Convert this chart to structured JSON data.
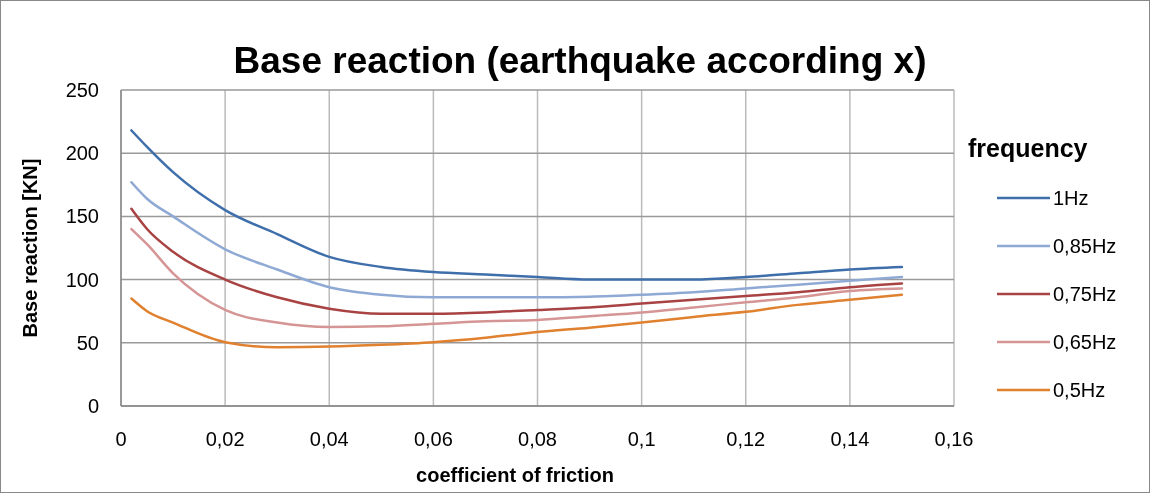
{
  "chart_data": {
    "type": "line",
    "title": "Base reaction (earthquake according x)",
    "xlabel": "coefficient of friction",
    "ylabel": "Base reaction [KN]",
    "legend_title": "frequency",
    "legend": "right",
    "grid": true,
    "line_style": "solid",
    "marker": "none",
    "x": [
      0.002,
      0.005,
      0.01,
      0.02,
      0.03,
      0.04,
      0.05,
      0.06,
      0.07,
      0.08,
      0.09,
      0.1,
      0.11,
      0.12,
      0.13,
      0.14,
      0.15
    ],
    "xlim": [
      0,
      0.16
    ],
    "xticks": [
      {
        "value": 0,
        "label": "0"
      },
      {
        "value": 0.02,
        "label": "0,02"
      },
      {
        "value": 0.04,
        "label": "0,04"
      },
      {
        "value": 0.06,
        "label": "0,06"
      },
      {
        "value": 0.08,
        "label": "0,08"
      },
      {
        "value": 0.1,
        "label": "0,1"
      },
      {
        "value": 0.12,
        "label": "0,12"
      },
      {
        "value": 0.14,
        "label": "0,14"
      },
      {
        "value": 0.16,
        "label": "0,16"
      }
    ],
    "ylim": [
      0,
      250
    ],
    "yticks": [
      0,
      50,
      100,
      150,
      200,
      250
    ],
    "series": [
      {
        "name": "1Hz",
        "color": "#3f6fab",
        "values": [
          218,
          205,
          185,
          155,
          136,
          118,
          110,
          106,
          104,
          102,
          100,
          100,
          100,
          102,
          105,
          108,
          110
        ]
      },
      {
        "name": "0,85Hz",
        "color": "#8fa9d5",
        "values": [
          177,
          164,
          150,
          124,
          108,
          94,
          88,
          86,
          86,
          86,
          86.5,
          88,
          90,
          93,
          96,
          99,
          102
        ]
      },
      {
        "name": "0,75Hz",
        "color": "#a94343",
        "values": [
          156,
          140,
          122,
          100,
          86,
          77,
          73,
          73,
          74,
          76,
          78,
          81,
          84,
          87,
          90,
          94,
          97
        ]
      },
      {
        "name": "0,65Hz",
        "color": "#d69595",
        "values": [
          140,
          128,
          105,
          76,
          66,
          62.5,
          63,
          65,
          67,
          68,
          71,
          74,
          78,
          82,
          86,
          91,
          93
        ]
      },
      {
        "name": "0,5Hz",
        "color": "#e0812f",
        "values": [
          85,
          75,
          66,
          50.5,
          46.5,
          47,
          48.4,
          50.5,
          54,
          58.5,
          62,
          66,
          70.5,
          74.5,
          80,
          84,
          88
        ]
      }
    ]
  }
}
